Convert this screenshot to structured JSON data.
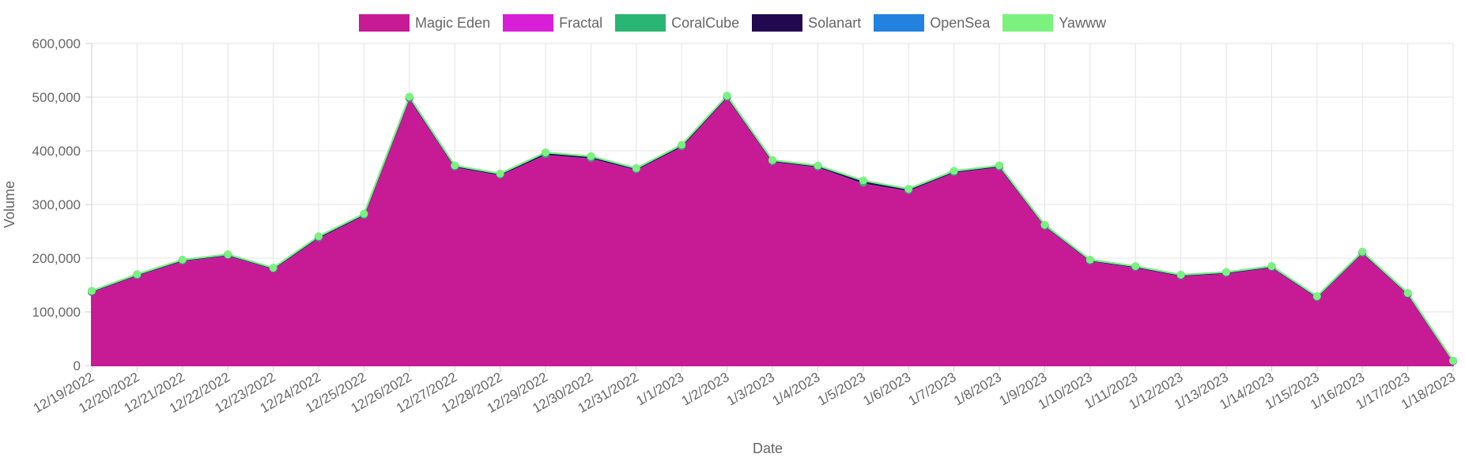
{
  "chart_data": {
    "type": "area",
    "xlabel": "Date",
    "ylabel": "Volume",
    "ylim": [
      0,
      600000
    ],
    "yticks": [
      0,
      100000,
      200000,
      300000,
      400000,
      500000,
      600000
    ],
    "ytick_labels": [
      "0",
      "100,000",
      "200,000",
      "300,000",
      "400,000",
      "500,000",
      "600,000"
    ],
    "grid": true,
    "legend_position": "top",
    "stacked": true,
    "categories": [
      "12/19/2022",
      "12/20/2022",
      "12/21/2022",
      "12/22/2022",
      "12/23/2022",
      "12/24/2022",
      "12/25/2022",
      "12/26/2022",
      "12/27/2022",
      "12/28/2022",
      "12/29/2022",
      "12/30/2022",
      "12/31/2022",
      "1/1/2023",
      "1/2/2023",
      "1/3/2023",
      "1/4/2023",
      "1/5/2023",
      "1/6/2023",
      "1/7/2023",
      "1/8/2023",
      "1/9/2023",
      "1/10/2023",
      "1/11/2023",
      "1/12/2023",
      "1/13/2023",
      "1/14/2023",
      "1/15/2023",
      "1/16/2023",
      "1/17/2023",
      "1/18/2023"
    ],
    "series": [
      {
        "name": "Magic Eden",
        "color": "#c71b95",
        "values": [
          137000,
          168000,
          195000,
          205000,
          180000,
          238000,
          280000,
          498000,
          370000,
          355000,
          393000,
          386000,
          365000,
          408000,
          500000,
          380000,
          370000,
          340000,
          326000,
          360000,
          370000,
          260000,
          195000,
          183000,
          167000,
          172000,
          183000,
          127000,
          210000,
          133000,
          8000
        ]
      },
      {
        "name": "Fractal",
        "color": "#d81fd8",
        "values": [
          500,
          500,
          500,
          500,
          500,
          500,
          500,
          500,
          500,
          500,
          800,
          800,
          500,
          500,
          500,
          500,
          500,
          500,
          500,
          500,
          500,
          500,
          500,
          500,
          500,
          500,
          500,
          500,
          500,
          500,
          300
        ]
      },
      {
        "name": "CoralCube",
        "color": "#29b573",
        "values": [
          200,
          200,
          200,
          200,
          200,
          200,
          200,
          200,
          200,
          200,
          200,
          200,
          200,
          200,
          200,
          200,
          200,
          200,
          200,
          200,
          200,
          200,
          200,
          200,
          200,
          200,
          200,
          200,
          200,
          200,
          100
        ]
      },
      {
        "name": "Solanart",
        "color": "#22084f",
        "values": [
          1000,
          1000,
          1000,
          1000,
          1000,
          1500,
          1500,
          1500,
          1500,
          1500,
          2500,
          2500,
          1500,
          2000,
          1500,
          1500,
          1500,
          3500,
          2000,
          1500,
          1500,
          1000,
          1000,
          1000,
          1000,
          1000,
          1000,
          1000,
          1000,
          1000,
          300
        ]
      },
      {
        "name": "OpenSea",
        "color": "#2381e0",
        "values": [
          200,
          200,
          200,
          200,
          200,
          200,
          200,
          200,
          200,
          200,
          200,
          200,
          200,
          200,
          200,
          200,
          200,
          200,
          200,
          200,
          200,
          200,
          200,
          200,
          200,
          200,
          200,
          200,
          200,
          200,
          100
        ]
      },
      {
        "name": "Yawww",
        "color": "#7cf27e",
        "values": [
          200,
          200,
          200,
          200,
          200,
          200,
          200,
          200,
          200,
          200,
          200,
          200,
          200,
          200,
          200,
          200,
          200,
          200,
          200,
          200,
          200,
          200,
          200,
          200,
          200,
          200,
          200,
          200,
          200,
          200,
          100
        ]
      }
    ]
  }
}
